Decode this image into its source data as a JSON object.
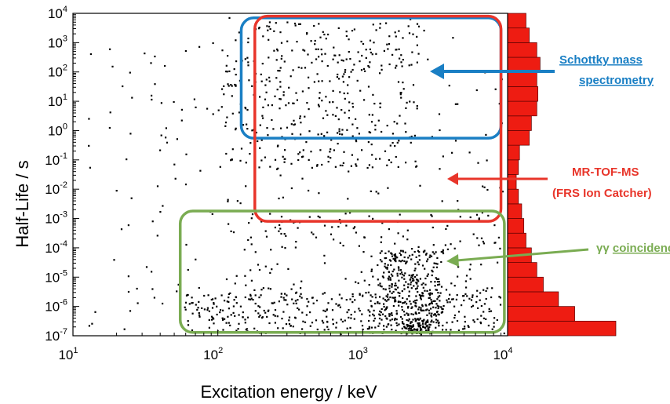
{
  "chart_data": {
    "type": "scatter",
    "title": "",
    "xlabel": "Excitation energy / keV",
    "ylabel": "Half-Life / s",
    "x_scale": "log",
    "y_scale": "log",
    "xlim": [
      10,
      10000
    ],
    "ylim": [
      1e-07,
      10000
    ],
    "grid": false,
    "x_ticks": [
      {
        "base": "10",
        "exp": "1",
        "value": 10
      },
      {
        "base": "10",
        "exp": "2",
        "value": 100
      },
      {
        "base": "10",
        "exp": "3",
        "value": 1000
      },
      {
        "base": "10",
        "exp": "4",
        "value": 10000
      }
    ],
    "y_ticks": [
      {
        "base": "10",
        "exp": "-7",
        "value": 1e-07
      },
      {
        "base": "10",
        "exp": "-6",
        "value": 1e-06
      },
      {
        "base": "10",
        "exp": "-5",
        "value": 1e-05
      },
      {
        "base": "10",
        "exp": "-4",
        "value": 0.0001
      },
      {
        "base": "10",
        "exp": "-3",
        "value": 0.001
      },
      {
        "base": "10",
        "exp": "-2",
        "value": 0.01
      },
      {
        "base": "10",
        "exp": "-1",
        "value": 0.1
      },
      {
        "base": "10",
        "exp": "0",
        "value": 1
      },
      {
        "base": "10",
        "exp": "1",
        "value": 10
      },
      {
        "base": "10",
        "exp": "2",
        "value": 100
      },
      {
        "base": "10",
        "exp": "3",
        "value": 1000
      },
      {
        "base": "10",
        "exp": "4",
        "value": 10000
      }
    ],
    "histogram": {
      "orientation": "horizontal",
      "bin_width_decades": 0.5,
      "bins": [
        {
          "log_lo": -7.0,
          "count": 100
        },
        {
          "log_lo": -6.5,
          "count": 62
        },
        {
          "log_lo": -6.0,
          "count": 47
        },
        {
          "log_lo": -5.5,
          "count": 33
        },
        {
          "log_lo": -5.0,
          "count": 27
        },
        {
          "log_lo": -4.5,
          "count": 22
        },
        {
          "log_lo": -4.0,
          "count": 17
        },
        {
          "log_lo": -3.5,
          "count": 15
        },
        {
          "log_lo": -3.0,
          "count": 13
        },
        {
          "log_lo": -2.5,
          "count": 10
        },
        {
          "log_lo": -2.0,
          "count": 8
        },
        {
          "log_lo": -1.5,
          "count": 10
        },
        {
          "log_lo": -1.0,
          "count": 11
        },
        {
          "log_lo": -0.5,
          "count": 20
        },
        {
          "log_lo": 0.0,
          "count": 22
        },
        {
          "log_lo": 0.5,
          "count": 27
        },
        {
          "log_lo": 1.0,
          "count": 28
        },
        {
          "log_lo": 1.5,
          "count": 27
        },
        {
          "log_lo": 2.0,
          "count": 30
        },
        {
          "log_lo": 2.5,
          "count": 27
        },
        {
          "log_lo": 3.0,
          "count": 20
        },
        {
          "log_lo": 3.5,
          "count": 17
        }
      ]
    },
    "regions": [
      {
        "name": "Schottky mass spectrometry",
        "x_range": [
          145,
          9000
        ],
        "y_range": [
          0.55,
          7000
        ],
        "color": "#1a7fc4"
      },
      {
        "name": "MR-TOF-MS (FRS Ion Catcher)",
        "x_range": [
          180,
          9000
        ],
        "y_range": [
          0.0008,
          8000
        ],
        "color": "#e8352a"
      },
      {
        "name": "γγ coincidence",
        "x_range": [
          55,
          9500
        ],
        "y_range": [
          1.3e-07,
          0.0018
        ],
        "color": "#7aac52"
      }
    ],
    "clusters": [
      {
        "x_range": [
          20,
          9500
        ],
        "y_range": [
          1.1e-07,
          8000
        ],
        "count": 260
      },
      {
        "x_range": [
          110,
          2500
        ],
        "y_range": [
          0.05,
          5000
        ],
        "count": 380
      },
      {
        "x_range": [
          1300,
          3600
        ],
        "y_range": [
          1.2e-07,
          8e-05
        ],
        "count": 320
      },
      {
        "x_range": [
          60,
          9000
        ],
        "y_range": [
          1.2e-07,
          3e-06
        ],
        "count": 360
      },
      {
        "x_range": [
          150,
          9000
        ],
        "y_range": [
          1.5e-06,
          0.002
        ],
        "count": 160
      },
      {
        "x_range": [
          2000,
          3000
        ],
        "y_range": [
          1.1e-07,
          4e-07
        ],
        "count": 70
      },
      {
        "x_range": [
          12,
          60
        ],
        "y_range": [
          1.5e-07,
          1000
        ],
        "count": 35
      }
    ]
  },
  "annotations": {
    "schottky": {
      "line1": "Schottky mass",
      "line2": "spectrometry",
      "color": "#1a7fc4"
    },
    "mrtof": {
      "line1": "MR-TOF-MS",
      "line2": "(FRS Ion Catcher)",
      "color": "#e8352a"
    },
    "gamma": {
      "prefix": "γγ ",
      "word": "coincidence",
      "color": "#7aac52"
    }
  }
}
